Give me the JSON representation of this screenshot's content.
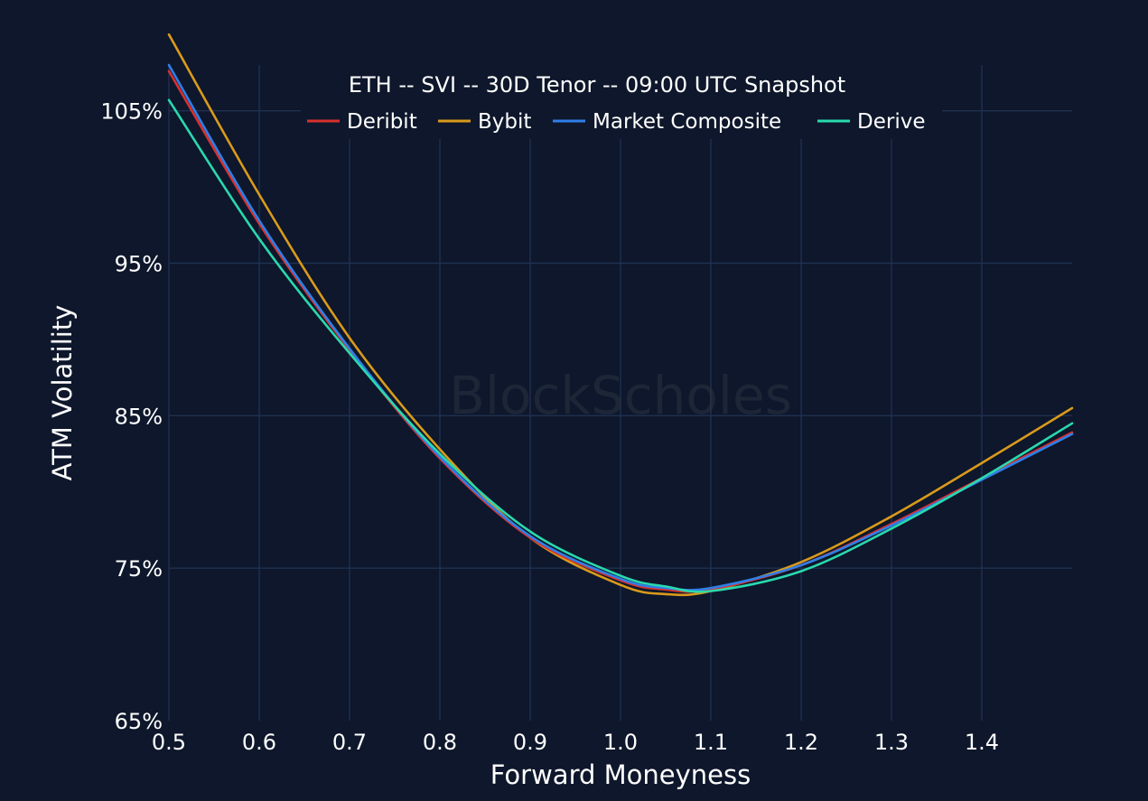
{
  "chart_data": {
    "type": "line",
    "title": "ETH -- SVI -- 30D Tenor -- 09:00 UTC Snapshot",
    "xlabel": "Forward Moneyness",
    "ylabel": "ATM Volatility",
    "xlim": [
      0.5,
      1.5
    ],
    "ylim": [
      65,
      108
    ],
    "x_ticks": [
      0.5,
      0.6,
      0.7,
      0.8,
      0.9,
      1.0,
      1.1,
      1.2,
      1.3,
      1.4
    ],
    "x_tick_labels": [
      "0.5",
      "0.6",
      "0.7",
      "0.8",
      "0.9",
      "1.0",
      "1.1",
      "1.2",
      "1.3",
      "1.4"
    ],
    "y_ticks": [
      65,
      75,
      85,
      95,
      105
    ],
    "y_tick_labels": [
      "65%",
      "75%",
      "85%",
      "95%",
      "105%"
    ],
    "grid": true,
    "legend_position": "top-center",
    "watermark": "BlockScholes",
    "x": [
      0.5,
      0.6,
      0.7,
      0.8,
      0.9,
      1.0,
      1.05,
      1.1,
      1.2,
      1.3,
      1.4,
      1.5
    ],
    "series": [
      {
        "name": "Deribit",
        "color": "#d9302c",
        "values": [
          107.6,
          97.6,
          89.3,
          82.2,
          77.0,
          74.2,
          73.6,
          73.6,
          75.2,
          77.9,
          80.9,
          83.9
        ]
      },
      {
        "name": "Bybit",
        "color": "#d99a1c",
        "values": [
          110.0,
          99.5,
          90.1,
          82.8,
          77.0,
          73.9,
          73.3,
          73.5,
          75.4,
          78.4,
          81.9,
          85.5
        ]
      },
      {
        "name": "Market Composite",
        "color": "#2f7fe8",
        "values": [
          108.0,
          97.8,
          89.4,
          82.3,
          77.1,
          74.3,
          73.7,
          73.7,
          75.2,
          77.8,
          80.8,
          83.8
        ]
      },
      {
        "name": "Derive",
        "color": "#2ad9ae",
        "values": [
          105.7,
          96.6,
          89.1,
          82.5,
          77.4,
          74.5,
          73.8,
          73.5,
          74.8,
          77.6,
          80.9,
          84.5
        ]
      }
    ]
  }
}
